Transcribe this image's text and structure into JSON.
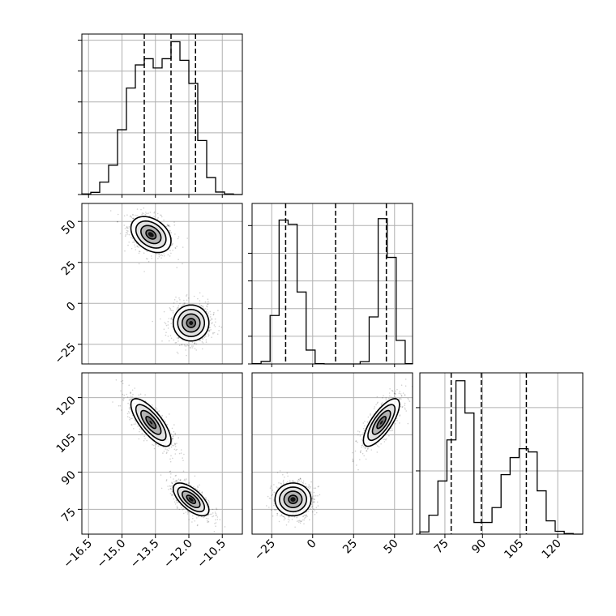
{
  "chart_data": {
    "type": "corner",
    "parameters": [
      {
        "ticks": [
          -16.5,
          -15.0,
          -13.5,
          -12.0,
          -10.5
        ],
        "tick_labels": [
          "−16.5",
          "−15.0",
          "−13.5",
          "−12.0",
          "−10.5"
        ],
        "range": [
          -16.8,
          -9.6
        ]
      },
      {
        "ticks": [
          -25,
          0,
          25,
          50
        ],
        "tick_labels": [
          "−25",
          "0",
          "25",
          "50"
        ],
        "range": [
          -37,
          61
        ]
      },
      {
        "ticks": [
          75,
          90,
          105,
          120
        ],
        "tick_labels": [
          "75",
          "90",
          "105",
          "120"
        ],
        "range": [
          65,
          130
        ]
      }
    ],
    "grid": true,
    "quantile_lines": [
      [
        -14.0,
        -12.8,
        -11.7
      ],
      [
        -16.5,
        14.0,
        45.0
      ],
      [
        77.5,
        89.5,
        107.5
      ]
    ],
    "hist_x": [
      [
        -16.8,
        -16.4,
        -16.0,
        -15.6,
        -15.2,
        -14.8,
        -14.4,
        -14.0,
        -13.6,
        -13.2,
        -12.8,
        -12.4,
        -12.0,
        -11.6,
        -11.2,
        -10.8,
        -10.4,
        -10.0,
        -9.6
      ],
      [
        -37,
        -31.5,
        -26,
        -20.5,
        -15,
        -9.5,
        -4,
        1.5,
        7,
        12.5,
        18,
        23.5,
        29,
        34.5,
        40,
        45.5,
        51,
        56.5,
        61
      ],
      [
        65,
        68.6,
        72.2,
        75.8,
        79.4,
        83,
        86.6,
        90.2,
        93.8,
        97.4,
        101,
        104.6,
        108.2,
        111.8,
        115.4,
        119,
        122.6,
        126.2,
        130
      ]
    ],
    "hist_counts": [
      [
        2,
        7,
        40,
        95,
        210,
        345,
        420,
        440,
        410,
        440,
        495,
        435,
        360,
        175,
        55,
        8,
        2,
        0
      ],
      [
        1,
        9,
        175,
        520,
        505,
        260,
        50,
        1,
        0,
        0,
        0,
        0,
        8,
        170,
        525,
        385,
        85,
        1
      ],
      [
        7,
        60,
        168,
        298,
        485,
        383,
        37,
        37,
        84,
        188,
        242,
        270,
        260,
        137,
        42,
        9,
        2,
        0
      ]
    ],
    "ylim": [
      520,
      580,
      510
    ],
    "yticks": [
      [
        0,
        100,
        200,
        300,
        400,
        500
      ],
      [
        0,
        100,
        200,
        300,
        400,
        500
      ],
      [
        0,
        200,
        400
      ]
    ],
    "clusters": [
      {
        "mean": [
          -13.7,
          42.0,
          110.0
        ],
        "weight": 0.5
      },
      {
        "mean": [
          -11.9,
          -12.0,
          79.0
        ],
        "weight": 0.5
      }
    ],
    "contour_levels": [
      "0.5-sigma",
      "1-sigma",
      "1.5-sigma",
      "2-sigma"
    ]
  }
}
